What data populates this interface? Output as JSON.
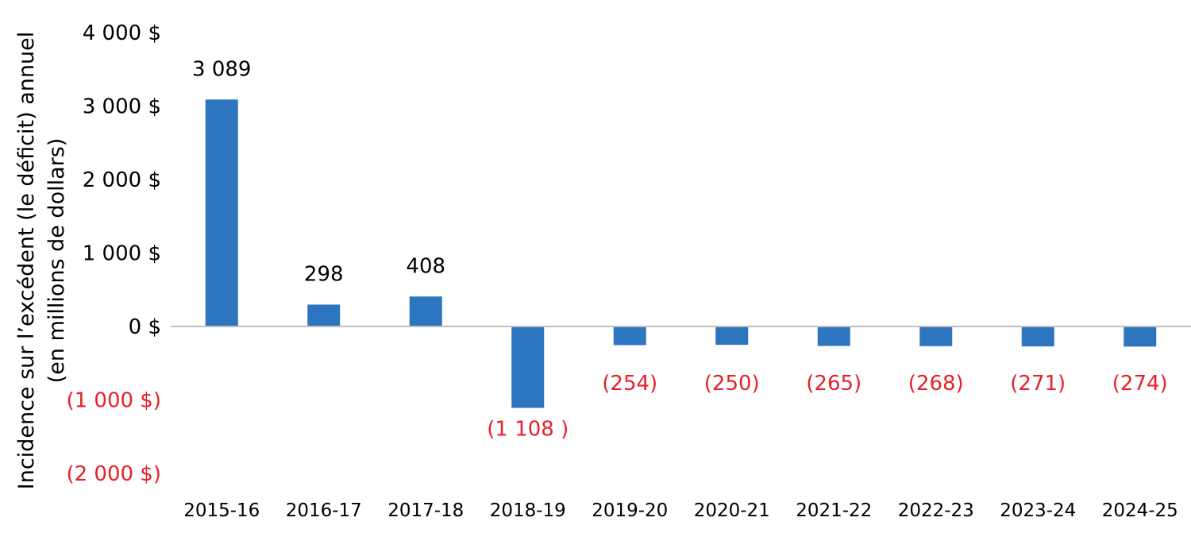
{
  "chart_data": {
    "type": "bar",
    "title": "",
    "ylabel_lines": [
      "Incidence sur l’excédent (le déficit) annuel",
      "(en millions de dollars)"
    ],
    "xlabel": "",
    "ylim": [
      -2000,
      4000
    ],
    "yticks": [
      4000,
      3000,
      2000,
      1000,
      0,
      -1000,
      -2000
    ],
    "ytick_labels": [
      "4 000 $",
      "3 000 $",
      "2 000 $",
      "1 000 $",
      "0 $",
      "(1 000 $)",
      "(2 000 $)"
    ],
    "categories": [
      "2015-16",
      "2016-17",
      "2017-18",
      "2018-19",
      "2019-20",
      "2020-21",
      "2021-22",
      "2022-23",
      "2023-24",
      "2024-25"
    ],
    "values": [
      3089,
      298,
      408,
      -1108,
      -254,
      -250,
      -265,
      -268,
      -271,
      -274
    ],
    "data_labels": [
      "3 089",
      "298",
      "408",
      "(1 108 )",
      "(254)",
      "(250)",
      "(265)",
      "(268)",
      "(271)",
      "(274)"
    ],
    "grid": false,
    "legend": "none",
    "colors": {
      "bar": "#2E75C0",
      "positive_text": "#000000",
      "negative_text": "#E8202A",
      "axis": "#BFBFBF"
    }
  }
}
